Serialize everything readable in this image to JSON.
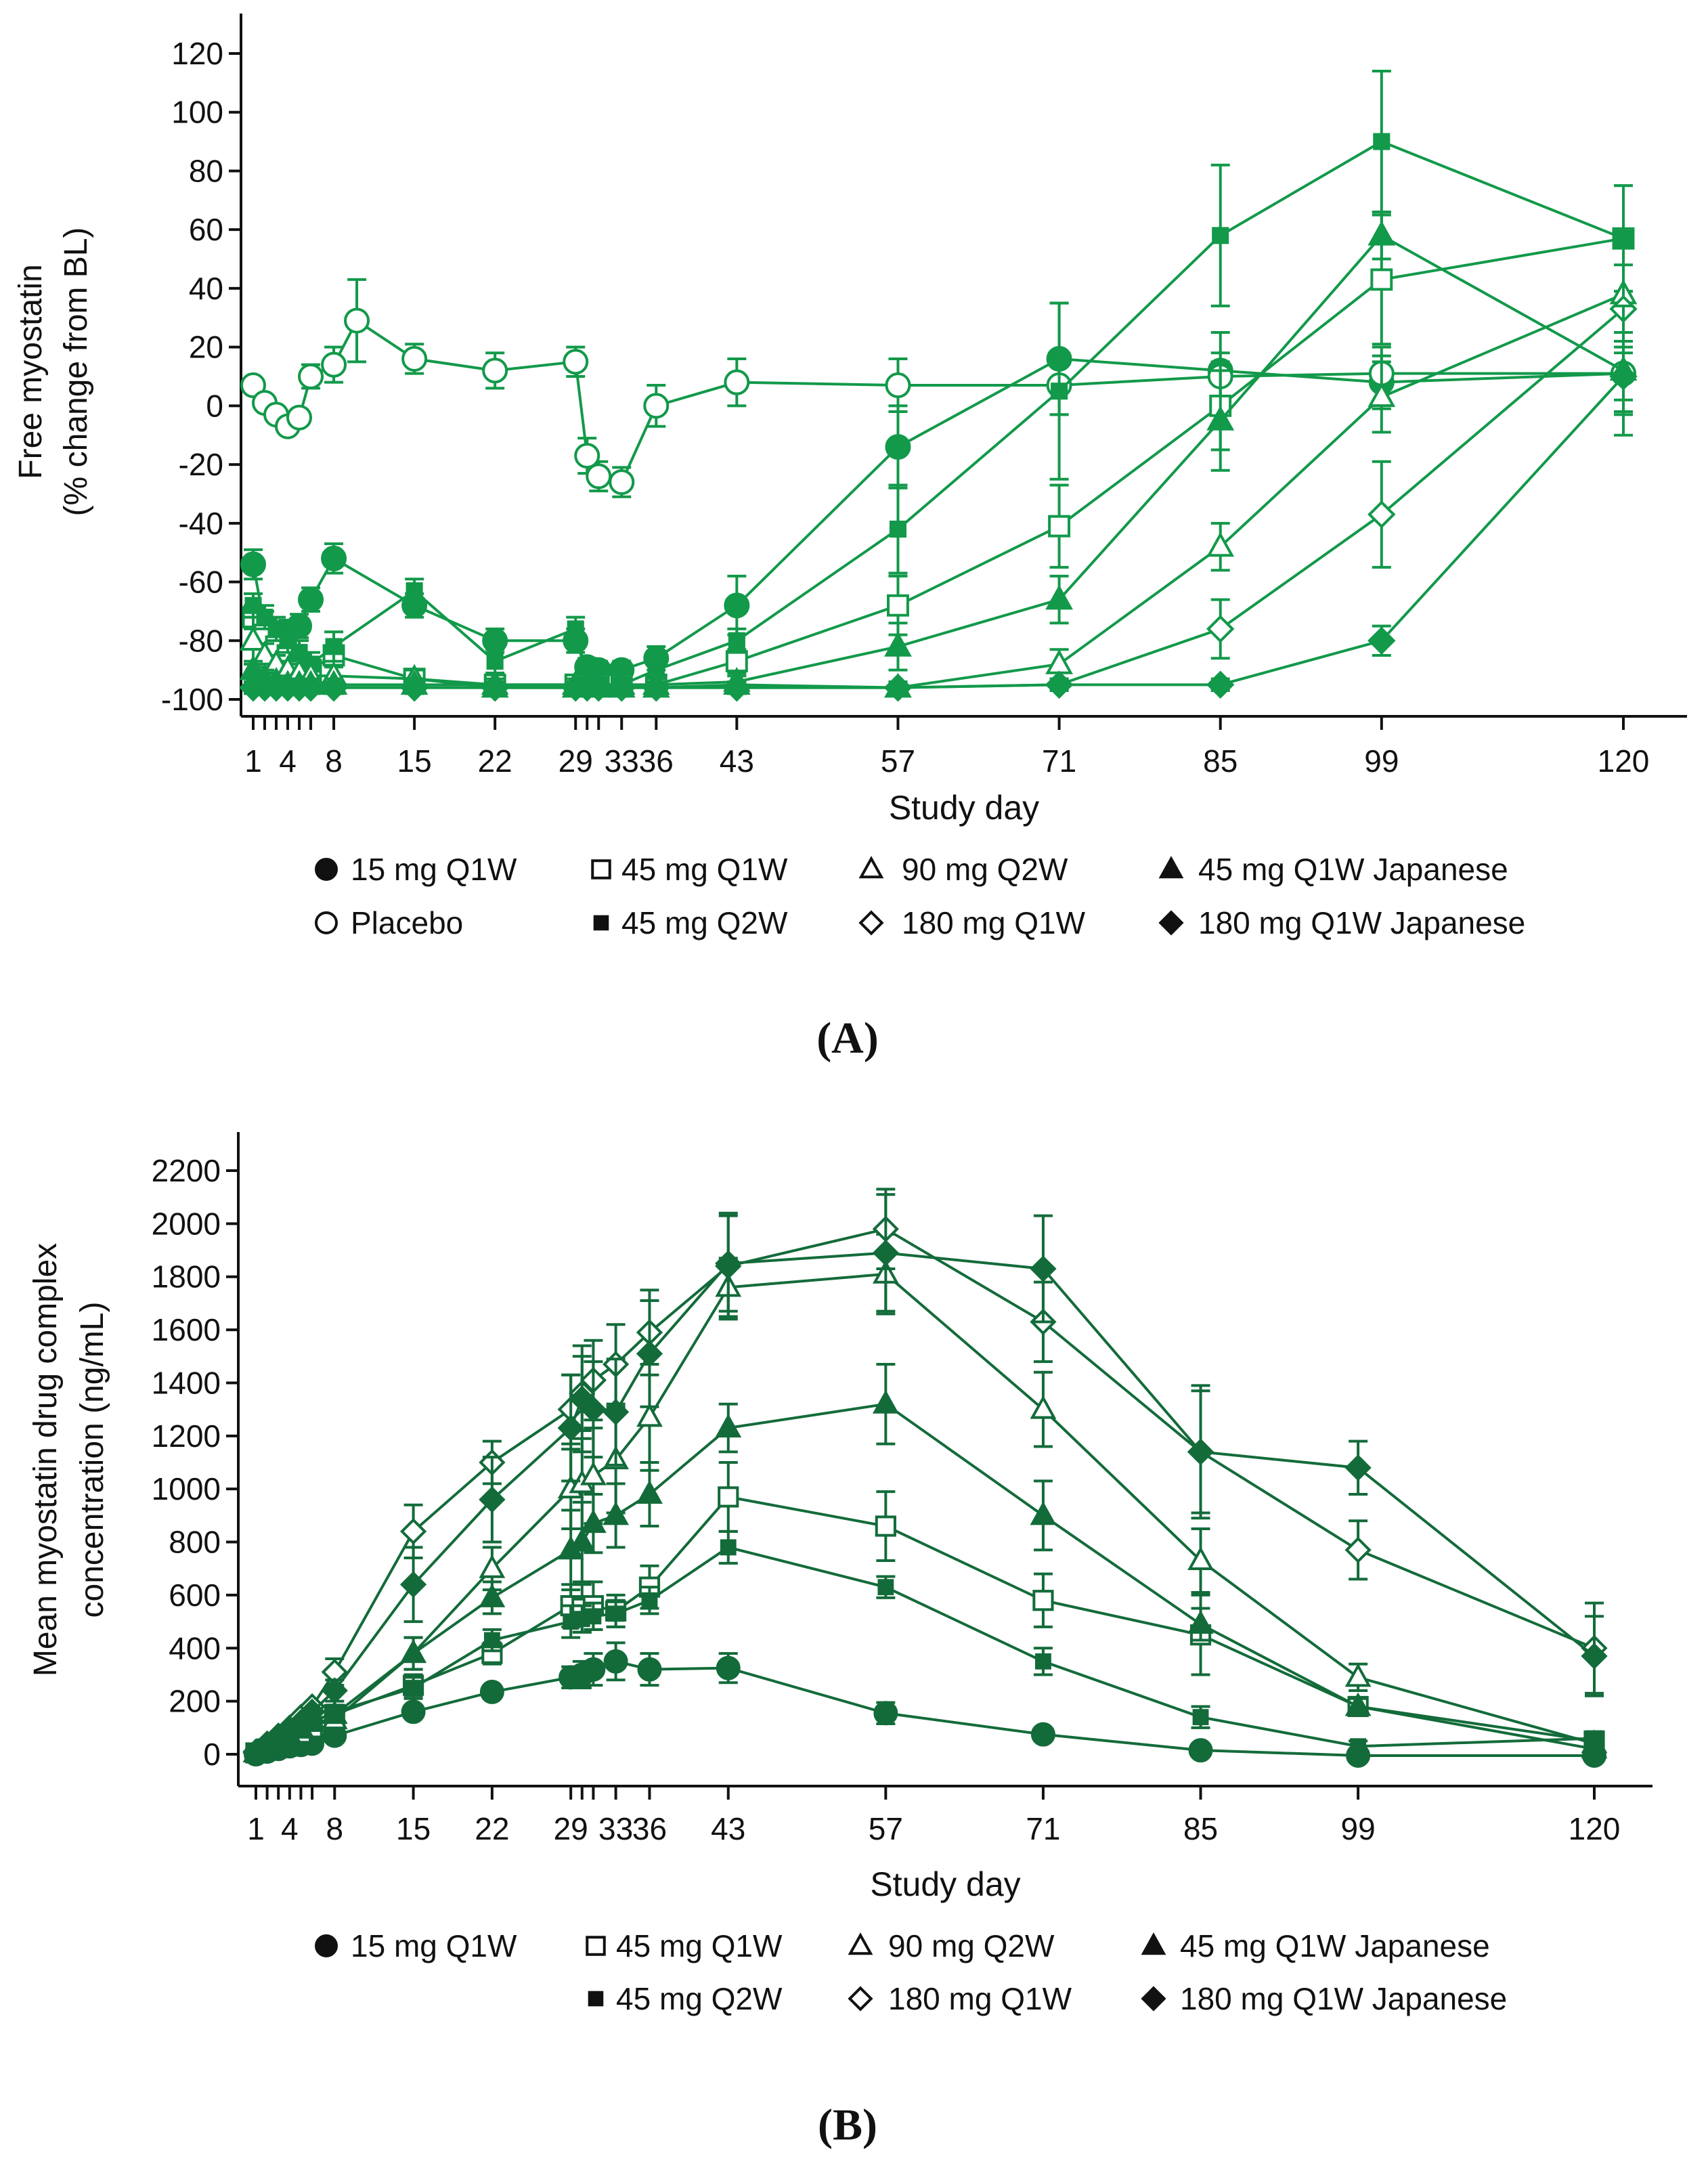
{
  "colors": {
    "panel_a": "#12994a",
    "panel_b": "#136b3a"
  },
  "chart_data": [
    {
      "type": "line",
      "panel_label": "(A)",
      "xlabel": "Study day",
      "ylabel": [
        "Free  myostatin",
        "(% change from BL)"
      ],
      "ylim": [
        -100,
        120
      ],
      "yticks": [
        -100,
        -80,
        -60,
        -40,
        -20,
        0,
        20,
        40,
        60,
        80,
        100,
        120
      ],
      "xticks": [
        1,
        2,
        3,
        4,
        5,
        6,
        8,
        15,
        22,
        29,
        30,
        31,
        33,
        36,
        43,
        57,
        71,
        85,
        99,
        120
      ],
      "xticklabels": [
        1,
        4,
        8,
        15,
        22,
        29,
        33,
        36,
        43,
        57,
        71,
        85,
        99,
        120
      ],
      "xlim": [
        1,
        120
      ],
      "x": [
        1,
        2,
        3,
        4,
        5,
        6,
        8,
        15,
        22,
        29,
        30,
        31,
        33,
        36,
        43,
        57,
        71,
        85,
        99,
        120
      ],
      "series": [
        {
          "name": "15 mg Q1W",
          "marker": "circle-filled",
          "values": [
            -54,
            -75,
            -79,
            -77,
            -75,
            -66,
            -52,
            -68,
            -80,
            -80,
            -89,
            -90,
            -90,
            -86,
            -68,
            -14,
            16,
            12,
            8,
            11
          ],
          "err": [
            5,
            5,
            4,
            4,
            4,
            4,
            5,
            4,
            4,
            4,
            3,
            3,
            3,
            4,
            10,
            14,
            19,
            13,
            9,
            14
          ]
        },
        {
          "name": "Placebo",
          "marker": "circle-open",
          "x": [
            1,
            2,
            3,
            4,
            5,
            6,
            8,
            10,
            15,
            22,
            29,
            30,
            31,
            33,
            36,
            43,
            57,
            71,
            85,
            99,
            120
          ],
          "values": [
            7,
            1,
            -3,
            -7,
            -4,
            10,
            14,
            29,
            16,
            12,
            15,
            -17,
            -24,
            -26,
            0,
            8,
            7,
            7,
            10,
            11,
            11
          ],
          "err": [
            0,
            0,
            0,
            0,
            0,
            4,
            6,
            14,
            5,
            6,
            5,
            6,
            5,
            5,
            7,
            8,
            9,
            10,
            8,
            9,
            9
          ]
        },
        {
          "name": "45 mg Q1W",
          "marker": "square-open",
          "values": [
            -72,
            -78,
            -82,
            -85,
            -88,
            -90,
            -85,
            -93,
            -95,
            -95,
            -95,
            -95,
            -95,
            -95,
            -87,
            -68,
            -41,
            0,
            43,
            57
          ],
          "err": [
            4,
            3,
            3,
            3,
            3,
            3,
            3,
            3,
            2,
            2,
            2,
            2,
            2,
            2,
            4,
            10,
            14,
            15,
            22,
            18
          ]
        },
        {
          "name": "45 mg Q2W",
          "marker": "square-small-filled",
          "values": [
            -68,
            -72,
            -76,
            -80,
            -84,
            -88,
            -82,
            -63,
            -87,
            -76,
            -95,
            -95,
            -95,
            -90,
            -80,
            -42,
            5,
            58,
            90,
            57
          ],
          "err": [
            4,
            4,
            4,
            4,
            4,
            4,
            5,
            4,
            4,
            4,
            2,
            2,
            2,
            4,
            4,
            15,
            30,
            24,
            24,
            18
          ]
        },
        {
          "name": "90 mg Q2W",
          "marker": "triangle-open",
          "values": [
            -80,
            -85,
            -88,
            -90,
            -91,
            -92,
            -92,
            -93,
            -96,
            -96,
            -96,
            -96,
            -96,
            -96,
            -95,
            -96,
            -88,
            -48,
            3,
            38
          ],
          "err": [
            8,
            4,
            3,
            3,
            3,
            3,
            3,
            3,
            2,
            2,
            2,
            2,
            2,
            2,
            3,
            2,
            5,
            8,
            12,
            16
          ]
        },
        {
          "name": "180 mg Q1W",
          "marker": "diamond-open",
          "values": [
            -96,
            -96,
            -96,
            -96,
            -96,
            -96,
            -96,
            -96,
            -96,
            -96,
            -96,
            -96,
            -96,
            -96,
            -96,
            -96,
            -95,
            -76,
            -37,
            33
          ],
          "err": [
            2,
            2,
            2,
            2,
            2,
            2,
            2,
            2,
            2,
            2,
            2,
            2,
            2,
            2,
            2,
            2,
            2,
            10,
            18,
            15
          ]
        },
        {
          "name": "45 mg Q1W Japanese",
          "marker": "triangle-filled",
          "values": [
            -90,
            -93,
            -94,
            -95,
            -95,
            -95,
            -95,
            -95,
            -95,
            -95,
            -95,
            -95,
            -95,
            -95,
            -94,
            -82,
            -66,
            -5,
            58,
            12
          ],
          "err": [
            3,
            3,
            2,
            2,
            2,
            2,
            2,
            2,
            2,
            2,
            2,
            2,
            2,
            2,
            2,
            8,
            8,
            17,
            8,
            22
          ]
        },
        {
          "name": "180 mg Q1W Japanese",
          "marker": "diamond-filled",
          "values": [
            -96,
            -96,
            -96,
            -96,
            -96,
            -96,
            -96,
            -96,
            -96,
            -96,
            -96,
            -96,
            -96,
            -96,
            -96,
            -96,
            -95,
            -95,
            -80,
            10
          ],
          "err": [
            2,
            2,
            2,
            2,
            2,
            2,
            2,
            2,
            2,
            2,
            2,
            2,
            2,
            2,
            2,
            2,
            2,
            2,
            5,
            12
          ]
        }
      ],
      "legend": {
        "placement": "below",
        "rows": [
          [
            "15 mg Q1W",
            "45 mg Q1W",
            "90 mg Q2W",
            "45 mg Q1W Japanese"
          ],
          [
            "Placebo",
            "45 mg Q2W",
            "180 mg Q1W",
            "180 mg Q1W Japanese"
          ]
        ]
      }
    },
    {
      "type": "line",
      "panel_label": "(B)",
      "xlabel": "Study day",
      "ylabel": [
        "Mean myostatin drug complex",
        "concentration (ng/mL)"
      ],
      "ylim": [
        0,
        2200
      ],
      "yticks": [
        0,
        200,
        400,
        600,
        800,
        1000,
        1200,
        1400,
        1600,
        1800,
        2000,
        2200
      ],
      "xticks": [
        1,
        2,
        3,
        4,
        5,
        6,
        8,
        15,
        22,
        29,
        30,
        31,
        33,
        36,
        43,
        57,
        71,
        85,
        99,
        120
      ],
      "xticklabels": [
        1,
        4,
        8,
        15,
        22,
        29,
        33,
        36,
        43,
        57,
        71,
        85,
        99,
        120
      ],
      "xlim": [
        1,
        120
      ],
      "x": [
        1,
        2,
        3,
        4,
        5,
        6,
        8,
        15,
        22,
        29,
        30,
        31,
        33,
        36,
        43,
        57,
        71,
        85,
        99,
        120
      ],
      "series": [
        {
          "name": "15 mg Q1W",
          "marker": "circle-filled",
          "values": [
            0,
            10,
            20,
            30,
            35,
            40,
            70,
            160,
            235,
            290,
            300,
            320,
            350,
            320,
            325,
            155,
            75,
            15,
            -5,
            -5
          ],
          "err": [
            0,
            0,
            0,
            0,
            0,
            0,
            0,
            0,
            0,
            40,
            50,
            60,
            70,
            60,
            55,
            40,
            0,
            0,
            0,
            0
          ]
        },
        {
          "name": "45 mg Q1W",
          "marker": "square-open",
          "values": [
            5,
            20,
            40,
            60,
            80,
            100,
            150,
            260,
            380,
            560,
            550,
            560,
            540,
            630,
            970,
            860,
            580,
            450,
            180,
            50
          ],
          "err": [
            0,
            0,
            0,
            0,
            0,
            0,
            0,
            40,
            40,
            80,
            90,
            90,
            60,
            80,
            130,
            130,
            100,
            150,
            30,
            20
          ]
        },
        {
          "name": "45 mg Q2W",
          "marker": "square-small-filled",
          "values": [
            5,
            20,
            40,
            60,
            90,
            120,
            160,
            250,
            430,
            500,
            510,
            520,
            530,
            580,
            780,
            630,
            350,
            140,
            30,
            60
          ],
          "err": [
            0,
            0,
            0,
            0,
            0,
            0,
            0,
            40,
            40,
            60,
            50,
            50,
            50,
            50,
            60,
            40,
            50,
            40,
            20,
            20
          ]
        },
        {
          "name": "90 mg Q2W",
          "marker": "triangle-open",
          "values": [
            5,
            25,
            45,
            70,
            95,
            120,
            130,
            380,
            700,
            1000,
            1020,
            1050,
            1110,
            1270,
            1760,
            1810,
            1300,
            730,
            290,
            40
          ],
          "err": [
            0,
            0,
            0,
            0,
            0,
            0,
            0,
            60,
            80,
            150,
            170,
            180,
            200,
            200,
            110,
            150,
            140,
            120,
            50,
            20
          ]
        },
        {
          "name": "45 mg Q1W Japanese",
          "marker": "triangle-filled",
          "values": [
            5,
            25,
            45,
            70,
            100,
            130,
            150,
            380,
            590,
            770,
            800,
            870,
            900,
            980,
            1230,
            1320,
            900,
            490,
            180,
            20
          ],
          "err": [
            0,
            0,
            0,
            0,
            0,
            0,
            0,
            60,
            60,
            150,
            150,
            110,
            120,
            120,
            90,
            150,
            130,
            60,
            30,
            10
          ]
        },
        {
          "name": "180 mg Q1W",
          "marker": "diamond-open",
          "values": [
            10,
            40,
            70,
            100,
            140,
            180,
            310,
            840,
            1100,
            1300,
            1360,
            1410,
            1470,
            1590,
            1840,
            1980,
            1630,
            1140,
            770,
            400
          ],
          "err": [
            0,
            0,
            0,
            0,
            0,
            0,
            50,
            100,
            80,
            130,
            140,
            150,
            150,
            160,
            200,
            150,
            150,
            250,
            110,
            170
          ]
        },
        {
          "name": "180 mg Q1W Japanese",
          "marker": "diamond-filled",
          "values": [
            5,
            30,
            60,
            90,
            120,
            160,
            240,
            640,
            960,
            1230,
            1340,
            1300,
            1290,
            1510,
            1850,
            1890,
            1830,
            1140,
            1080,
            370
          ],
          "err": [
            0,
            0,
            0,
            0,
            0,
            0,
            40,
            140,
            160,
            200,
            200,
            180,
            200,
            200,
            180,
            220,
            200,
            230,
            100,
            150
          ]
        }
      ],
      "legend": {
        "placement": "below",
        "rows": [
          [
            "15 mg Q1W",
            "45 mg Q1W",
            "90 mg Q2W",
            "45 mg Q1W Japanese"
          ],
          [
            "45 mg Q2W",
            "180 mg Q1W",
            "180 mg Q1W Japanese"
          ]
        ]
      }
    }
  ]
}
